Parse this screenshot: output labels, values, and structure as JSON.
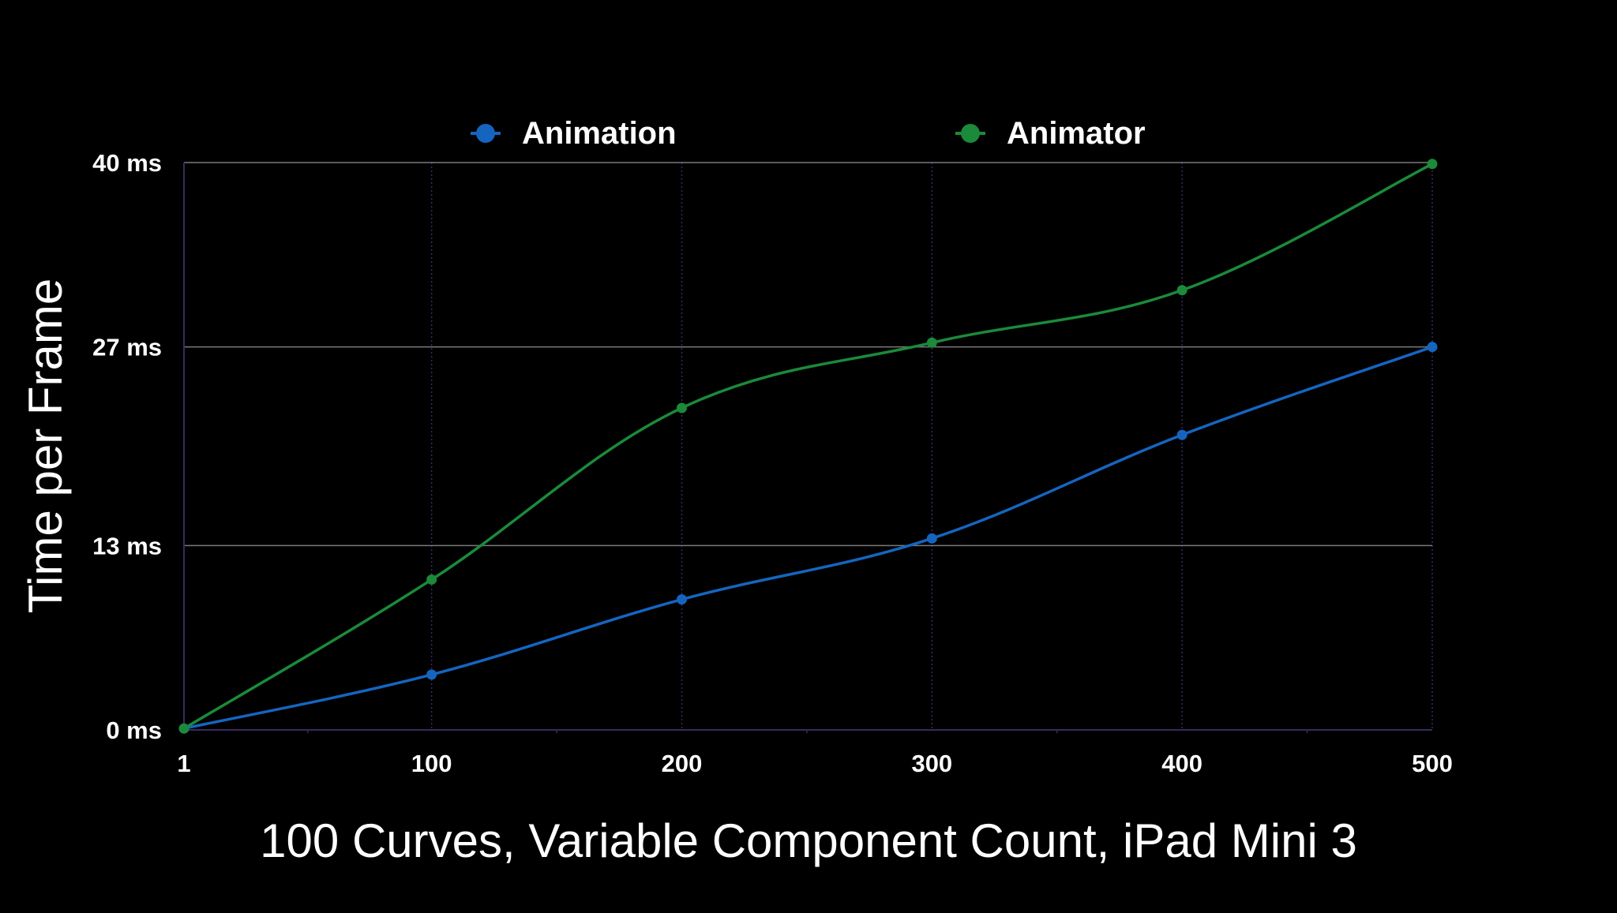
{
  "chart_data": {
    "type": "line",
    "title": "",
    "xlabel": "100 Curves, Variable Component Count, iPad Mini 3",
    "ylabel": "Time per Frame",
    "x": [
      1,
      100,
      200,
      300,
      400,
      500
    ],
    "x_tick_labels": [
      "1",
      "100",
      "200",
      "300",
      "400",
      "500"
    ],
    "y_ticks": [
      0,
      13,
      27,
      40
    ],
    "y_tick_labels": [
      "0 ms",
      "13 ms",
      "27 ms",
      "40 ms"
    ],
    "xlim": [
      1,
      500
    ],
    "ylim": [
      0,
      40
    ],
    "grid": true,
    "legend_position": "top",
    "series": [
      {
        "name": "Animation",
        "color": "#1565c0",
        "values": [
          0.1,
          3.9,
          9.2,
          13.5,
          20.8,
          27.0
        ]
      },
      {
        "name": "Animator",
        "color": "#1b8a3a",
        "values": [
          0.1,
          10.6,
          22.7,
          27.3,
          31.0,
          39.9
        ]
      }
    ]
  },
  "colors": {
    "background": "#000000",
    "text": "#ffffff",
    "grid_major": "#7a7a7a",
    "grid_minor": "#3a2a5e"
  }
}
